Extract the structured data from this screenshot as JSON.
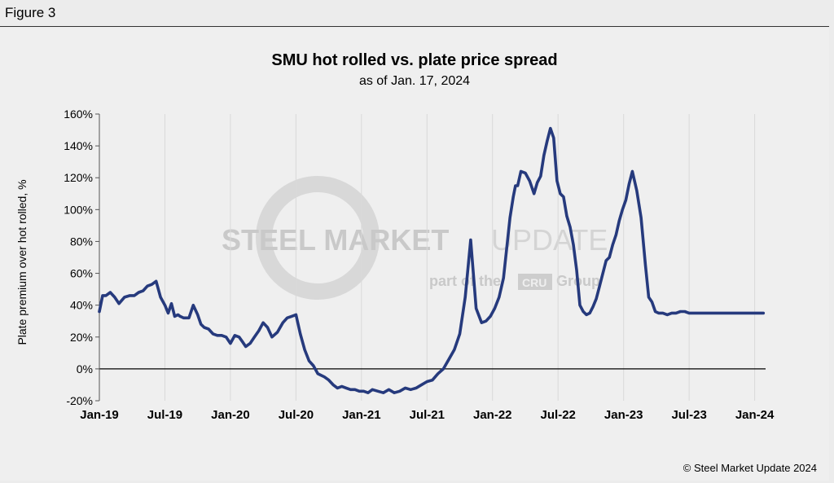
{
  "figure_label": "Figure 3",
  "copyright": "© Steel Market Update 2024",
  "watermark": {
    "line1_bold": "STEEL MARKET",
    "line1_light": "UPDATE",
    "line2_pre": "part of the",
    "line2_logo": "CRU",
    "line2_post": "Group"
  },
  "colors": {
    "line": "#263a7d",
    "grid": "#d9d9d9",
    "zero": "#000000",
    "watermark": "#c8c8c8"
  },
  "chart_data": {
    "type": "line",
    "title": "SMU hot rolled vs. plate price spread",
    "subtitle": "as of Jan. 17, 2024",
    "xlabel": "",
    "ylabel": "Plate premium over hot rolled, %",
    "ylim": [
      -20,
      160
    ],
    "yticks": [
      -20,
      0,
      20,
      40,
      60,
      80,
      100,
      120,
      140,
      160
    ],
    "ytick_labels": [
      "-20%",
      "0%",
      "20%",
      "40%",
      "60%",
      "80%",
      "100%",
      "120%",
      "140%",
      "160%"
    ],
    "xlim": [
      0,
      61
    ],
    "xticks": [
      0,
      6,
      12,
      18,
      24,
      30,
      36,
      42,
      48,
      54,
      60
    ],
    "xtick_labels": [
      "Jan-19",
      "Jul-19",
      "Jan-20",
      "Jul-20",
      "Jan-21",
      "Jul-21",
      "Jan-22",
      "Jul-22",
      "Jan-23",
      "Jul-23",
      "Jan-24"
    ],
    "grid": true,
    "series": [
      {
        "name": "Plate premium over hot rolled",
        "x": [
          0.0,
          0.3,
          0.6,
          1.0,
          1.4,
          1.8,
          2.3,
          2.8,
          3.2,
          3.6,
          4.0,
          4.4,
          4.8,
          5.2,
          5.6,
          6.0,
          6.3,
          6.6,
          6.9,
          7.2,
          7.4,
          7.7,
          8.2,
          8.6,
          9.0,
          9.3,
          9.6,
          10.0,
          10.4,
          10.8,
          11.2,
          11.6,
          12.0,
          12.4,
          12.8,
          13.1,
          13.4,
          13.8,
          14.2,
          14.6,
          15.0,
          15.4,
          15.8,
          16.3,
          16.8,
          17.2,
          17.6,
          18.0,
          18.4,
          18.8,
          19.2,
          19.6,
          20.0,
          20.3,
          20.6,
          21.0,
          21.4,
          21.8,
          22.2,
          22.6,
          23.0,
          23.4,
          23.8,
          24.2,
          24.6,
          25.0,
          25.5,
          26.0,
          26.5,
          27.0,
          27.5,
          28.0,
          28.5,
          29.0,
          29.5,
          30.0,
          30.5,
          31.0,
          31.5,
          32.0,
          32.5,
          33.0,
          33.5,
          34.0,
          34.5,
          35.0,
          35.4,
          35.8,
          36.2,
          36.6,
          37.0,
          37.3,
          37.6,
          37.9,
          38.1,
          38.3,
          38.6,
          39.0,
          39.4,
          39.8,
          40.1,
          40.4,
          40.7,
          41.0,
          41.3,
          41.6,
          41.9,
          42.2,
          42.5,
          42.8,
          43.1,
          43.4,
          43.7,
          44.0,
          44.3,
          44.6,
          44.9,
          45.2,
          45.5,
          45.8,
          46.1,
          46.4,
          46.7,
          47.0,
          47.3,
          47.6,
          47.9,
          48.2,
          48.5,
          48.8,
          49.2,
          49.6,
          50.0,
          50.3,
          50.6,
          50.9,
          51.2,
          51.6,
          52.0,
          52.4,
          52.8,
          53.2,
          53.6,
          54.0,
          54.4,
          54.8,
          55.2,
          55.6,
          56.0,
          56.4,
          56.8,
          57.2,
          57.6,
          58.0,
          58.3,
          58.6,
          58.9,
          59.2,
          59.6,
          60.0,
          60.4,
          60.8
        ],
        "values": [
          36,
          46,
          46,
          48,
          45,
          41,
          45,
          46,
          46,
          48,
          49,
          52,
          53,
          55,
          45,
          40,
          35,
          41,
          33,
          34,
          33,
          32,
          32,
          40,
          34,
          28,
          26,
          25,
          22,
          21,
          21,
          20,
          16,
          21,
          20,
          17,
          14,
          16,
          20,
          24,
          29,
          26,
          20,
          23,
          29,
          32,
          33,
          34,
          22,
          12,
          5,
          2,
          -3,
          -4,
          -5,
          -7,
          -10,
          -12,
          -11,
          -12,
          -13,
          -13,
          -14,
          -14,
          -15,
          -13,
          -14,
          -15,
          -13,
          -15,
          -14,
          -12,
          -13,
          -12,
          -10,
          -8,
          -7,
          -3,
          0,
          6,
          12,
          22,
          45,
          81,
          38,
          29,
          30,
          33,
          38,
          45,
          57,
          76,
          95,
          108,
          115,
          115,
          124,
          123,
          118,
          110,
          117,
          121,
          134,
          143,
          151,
          145,
          118,
          110,
          108,
          96,
          89,
          78,
          62,
          40,
          36,
          34,
          35,
          39,
          44,
          52,
          60,
          68,
          70,
          78,
          84,
          93,
          100,
          106,
          116,
          124,
          112,
          95,
          65,
          45,
          42,
          36,
          35,
          35,
          34,
          35,
          35,
          36,
          36,
          35,
          35,
          35,
          35,
          35,
          35,
          35,
          35,
          35,
          35,
          35,
          35,
          35,
          35,
          35,
          35,
          35,
          35,
          35
        ]
      }
    ]
  }
}
